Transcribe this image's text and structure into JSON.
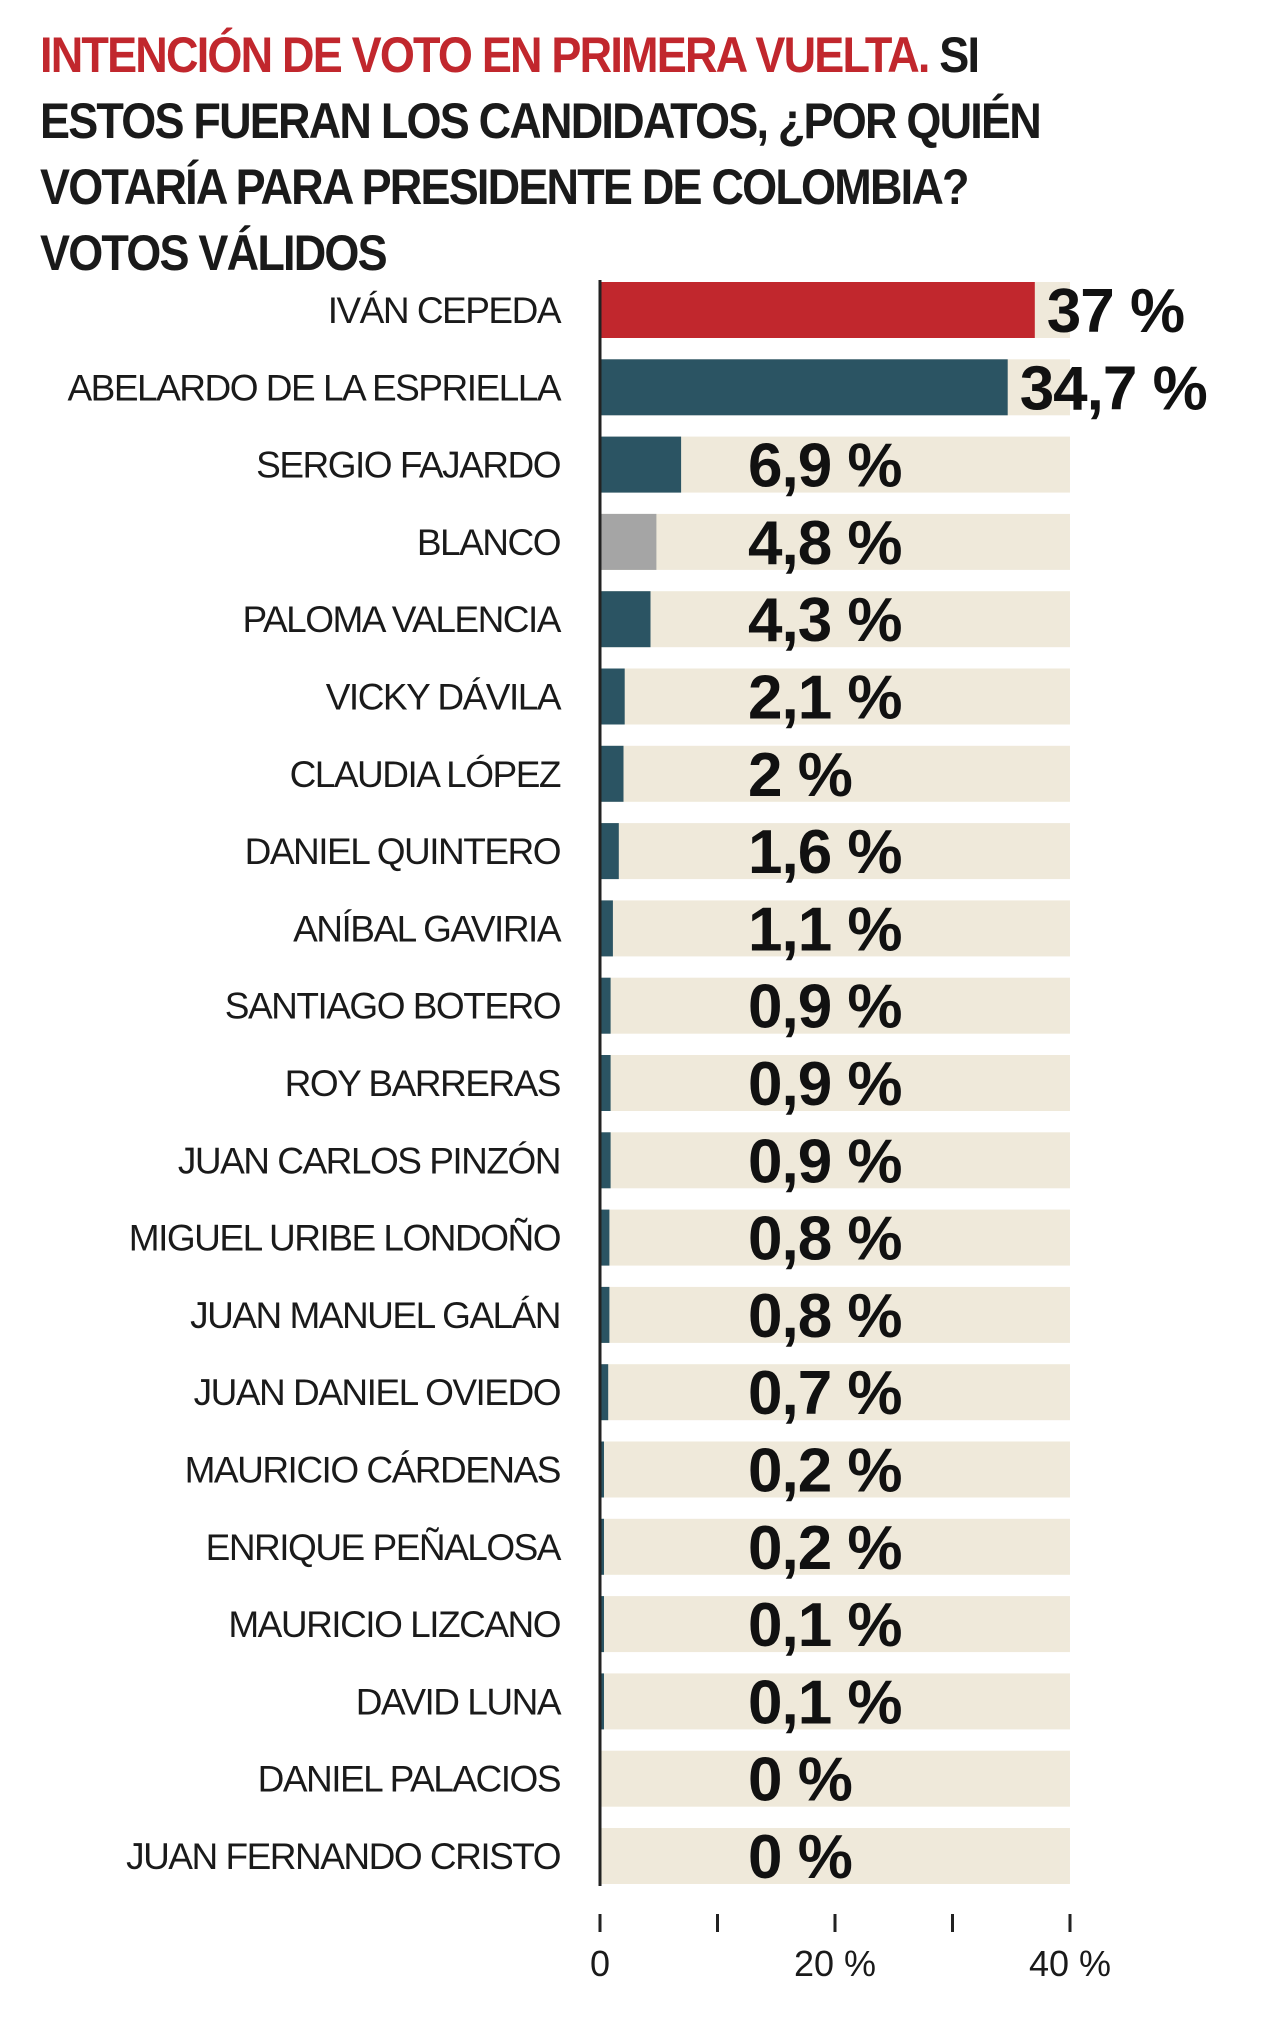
{
  "title": {
    "highlight": "INTENCIÓN DE VOTO EN PRIMERA VUELTA.",
    "rest": " SI ESTOS FUERAN LOS CANDIDATOS, ¿POR QUIÉN VOTARÍA PARA PRESIDENTE DE COLOMBIA? VOTOS VÁLIDOS"
  },
  "colors": {
    "accent_red": "#c1272d",
    "bar_teal": "#2b5463",
    "bar_gray": "#a5a5a5",
    "track_beige": "#efe9da",
    "axis": "#222222"
  },
  "chart_data": {
    "type": "bar",
    "orientation": "horizontal",
    "categories": [
      "IVÁN CEPEDA",
      "ABELARDO DE LA ESPRIELLA",
      "SERGIO FAJARDO",
      "BLANCO",
      "PALOMA VALENCIA",
      "VICKY DÁVILA",
      "CLAUDIA LÓPEZ",
      "DANIEL QUINTERO",
      "ANÍBAL GAVIRIA",
      "SANTIAGO BOTERO",
      "ROY BARRERAS",
      "JUAN CARLOS PINZÓN",
      "MIGUEL URIBE LONDOÑO",
      "JUAN MANUEL GALÁN",
      "JUAN DANIEL OVIEDO",
      "MAURICIO CÁRDENAS",
      "ENRIQUE PEÑALOSA",
      "MAURICIO LIZCANO",
      "DAVID LUNA",
      "DANIEL PALACIOS",
      "JUAN FERNANDO CRISTO"
    ],
    "values": [
      37,
      34.7,
      6.9,
      4.8,
      4.3,
      2.1,
      2,
      1.6,
      1.1,
      0.9,
      0.9,
      0.9,
      0.8,
      0.8,
      0.7,
      0.2,
      0.2,
      0.1,
      0.1,
      0,
      0
    ],
    "value_labels": [
      "37 %",
      "34,7 %",
      "6,9 %",
      "4,8 %",
      "4,3 %",
      "2,1 %",
      "2 %",
      "1,6 %",
      "1,1 %",
      "0,9 %",
      "0,9 %",
      "0,9 %",
      "0,8 %",
      "0,8 %",
      "0,7 %",
      "0,2 %",
      "0,2 %",
      "0,1 %",
      "0,1 %",
      "0 %",
      "0 %"
    ],
    "bar_colors": [
      "#c1272d",
      "#2b5463",
      "#2b5463",
      "#a5a5a5",
      "#2b5463",
      "#2b5463",
      "#2b5463",
      "#2b5463",
      "#2b5463",
      "#2b5463",
      "#2b5463",
      "#2b5463",
      "#2b5463",
      "#2b5463",
      "#2b5463",
      "#2b5463",
      "#2b5463",
      "#2b5463",
      "#2b5463",
      "#2b5463",
      "#2b5463"
    ],
    "xlim": [
      0,
      40
    ],
    "x_ticks": [
      0,
      10,
      20,
      30,
      40
    ],
    "x_tick_labels": [
      "0",
      "",
      "20 %",
      "",
      "40 %"
    ],
    "grid": false,
    "legend": "none"
  }
}
